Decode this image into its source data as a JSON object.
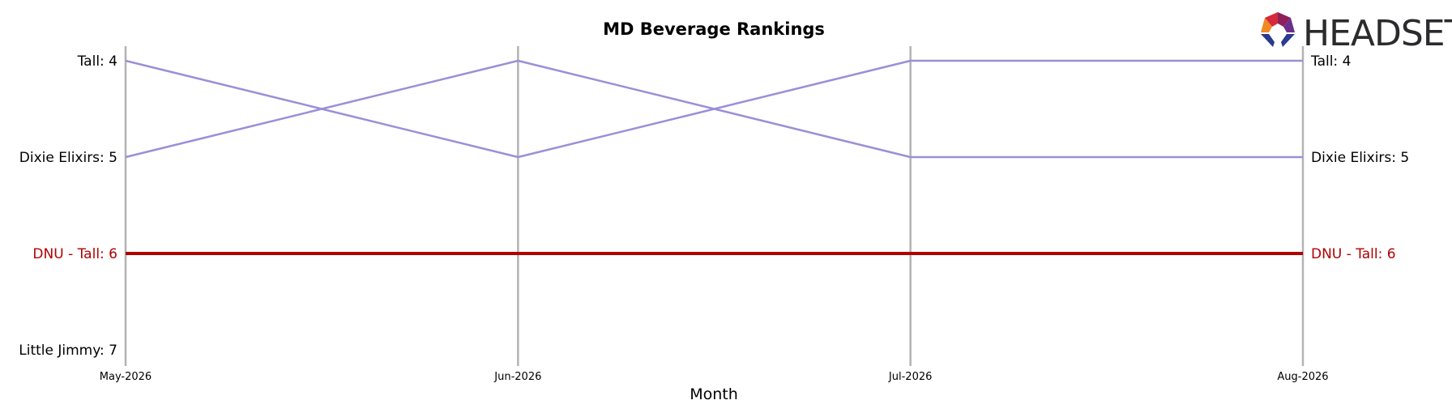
{
  "chart_data": {
    "type": "line",
    "title": "MD Beverage Rankings",
    "xlabel": "Month",
    "ylabel": "",
    "x": [
      "May-2026",
      "Jun-2026",
      "Jul-2026",
      "Aug-2026"
    ],
    "ylim": [
      7,
      4
    ],
    "y_inverted": true,
    "grid": "vertical lines at each month",
    "legend": "none (series labeled at both ends)",
    "left_labels": [
      {
        "rank": 4,
        "text": "Tall: 4",
        "highlight": false
      },
      {
        "rank": 5,
        "text": "Dixie Elixirs: 5",
        "highlight": false
      },
      {
        "rank": 6,
        "text": "DNU - Tall: 6",
        "highlight": true
      },
      {
        "rank": 7,
        "text": "Little Jimmy: 7",
        "highlight": false
      }
    ],
    "right_labels": [
      {
        "rank": 4,
        "text": "Tall: 4",
        "highlight": false
      },
      {
        "rank": 5,
        "text": "Dixie Elixirs: 5",
        "highlight": false
      },
      {
        "rank": 6,
        "text": "DNU - Tall: 6",
        "highlight": true
      }
    ],
    "series": [
      {
        "name": "Tall",
        "values": [
          4,
          5,
          4,
          4
        ],
        "highlight": false
      },
      {
        "name": "Dixie Elixirs",
        "values": [
          5,
          4,
          5,
          5
        ],
        "highlight": false
      },
      {
        "name": "DNU - Tall",
        "values": [
          6,
          6,
          6,
          6
        ],
        "highlight": true
      },
      {
        "name": "Little Jimmy",
        "values": [
          7,
          null,
          null,
          null
        ],
        "highlight": false
      }
    ]
  },
  "colors": {
    "highlight": "#b00000",
    "other_series": "#9b8fd8",
    "gridline": "#b3b3b3",
    "text": "#000000"
  },
  "logo": {
    "text": "HEADSET"
  }
}
